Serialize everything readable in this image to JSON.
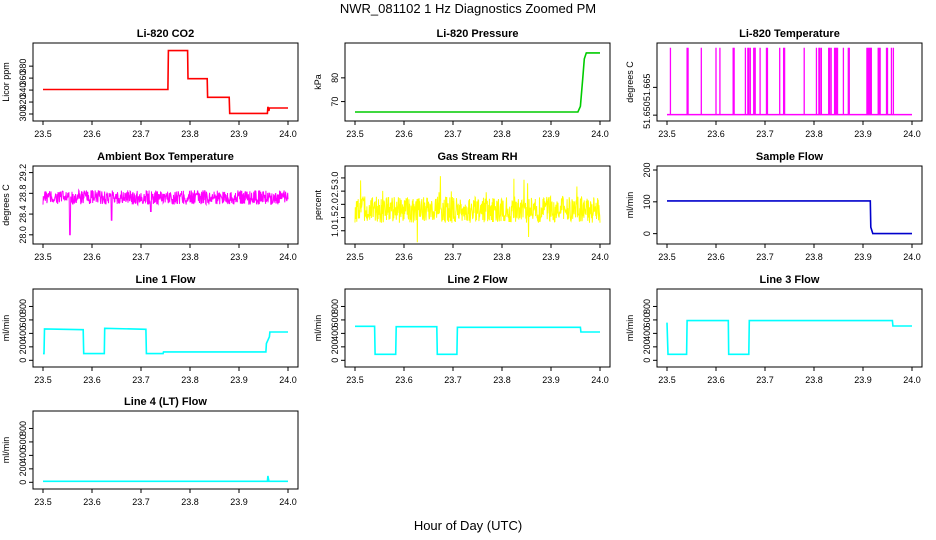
{
  "figure": {
    "title": "NWR_081102  1 Hz Diagnostics Zoomed PM",
    "xlabel": "Hour of Day (UTC)"
  },
  "chart_data": [
    {
      "type": "line",
      "title": "Li-820 CO2",
      "ylabel": "Licor ppm",
      "color": "#ff0000",
      "xlim": [
        23.5,
        24.0
      ],
      "ylim": [
        295,
        412
      ],
      "xticks": [
        23.5,
        23.6,
        23.7,
        23.8,
        23.9,
        24.0
      ],
      "yticks": [
        300,
        320,
        340,
        360,
        380
      ],
      "series": [
        {
          "x": [
            23.5,
            23.755,
            23.756,
            23.795,
            23.796,
            23.835,
            23.836,
            23.88,
            23.881,
            23.958,
            23.959,
            23.961,
            23.962,
            24.0
          ],
          "y": [
            341,
            341,
            406,
            406,
            359,
            359,
            328,
            328,
            301,
            301,
            312,
            305,
            310,
            310
          ]
        }
      ]
    },
    {
      "type": "line",
      "title": "Li-820 Pressure",
      "ylabel": "kPa",
      "color": "#00cc00",
      "xlim": [
        23.5,
        24.0
      ],
      "ylim": [
        63.5,
        93
      ],
      "xticks": [
        23.5,
        23.6,
        23.7,
        23.8,
        23.9,
        24.0
      ],
      "yticks": [
        70,
        80
      ],
      "series": [
        {
          "x": [
            23.5,
            23.955,
            23.96,
            23.965,
            23.968,
            23.972,
            24.0
          ],
          "y": [
            65.6,
            65.6,
            68,
            80,
            88,
            90.5,
            90.5
          ]
        }
      ]
    },
    {
      "type": "line",
      "title": "Li-820 Temperature",
      "ylabel": "degrees C",
      "color": "#ff00ff",
      "xlim": [
        23.5,
        24.0
      ],
      "ylim": [
        51.649,
        51.6868
      ],
      "xticks": [
        23.5,
        23.6,
        23.7,
        23.8,
        23.9,
        24.0
      ],
      "yticks": [
        51.65,
        51.665
      ],
      "baseline": 51.6503,
      "high": 51.6864,
      "spikes": [
        23.507,
        23.541,
        23.543,
        23.57,
        23.6,
        23.608,
        23.635,
        23.637,
        23.66,
        23.665,
        23.667,
        23.67,
        23.677,
        23.679,
        23.68,
        23.69,
        23.703,
        23.705,
        23.73,
        23.738,
        23.74,
        23.78,
        23.805,
        23.81,
        23.812,
        23.815,
        23.83,
        23.832,
        23.835,
        23.842,
        23.844,
        23.846,
        23.848,
        23.86,
        23.87,
        23.872,
        23.908,
        23.91,
        23.912,
        23.914,
        23.916,
        23.917,
        23.931,
        23.933,
        23.935,
        23.948,
        23.95,
        23.958,
        23.962
      ]
    },
    {
      "type": "line",
      "title": "Ambient Box Temperature",
      "ylabel": "degrees C",
      "color": "#ff00ff",
      "xlim": [
        23.5,
        24.0
      ],
      "ylim": [
        27.9,
        29.25
      ],
      "xticks": [
        23.5,
        23.6,
        23.7,
        23.8,
        23.9,
        24.0
      ],
      "yticks": [
        28.0,
        28.4,
        28.8,
        29.2
      ],
      "noise": {
        "center": 28.72,
        "amplitude": 0.14,
        "min_dips": [
          [
            23.555,
            28.0
          ],
          [
            23.64,
            28.28
          ],
          [
            23.72,
            28.45
          ]
        ]
      }
    },
    {
      "type": "line",
      "title": "Gas Stream RH",
      "ylabel": "percent",
      "color": "#ffff00",
      "xlim": [
        23.5,
        24.0
      ],
      "ylim": [
        0.65,
        3.3
      ],
      "xticks": [
        23.5,
        23.6,
        23.7,
        23.8,
        23.9,
        24.0
      ],
      "yticks": [
        1.0,
        1.5,
        2.0,
        2.5,
        3.0
      ],
      "noise": {
        "center": 1.8,
        "amplitude": 0.5
      }
    },
    {
      "type": "line",
      "title": "Sample Flow",
      "ylabel": "ml/min",
      "color": "#0000cc",
      "xlim": [
        23.5,
        24.0
      ],
      "ylim": [
        -20,
        200
      ],
      "xticks": [
        23.5,
        23.6,
        23.7,
        23.8,
        23.9,
        24.0
      ],
      "yticks": [
        0,
        100,
        200
      ],
      "series": [
        {
          "x": [
            23.5,
            23.915,
            23.916,
            23.92,
            24.0
          ],
          "y": [
            103,
            103,
            20,
            0,
            0
          ]
        }
      ]
    },
    {
      "type": "line",
      "title": "Line 1 Flow",
      "ylabel": "ml/min",
      "color": "#00ffff",
      "xlim": [
        23.5,
        24.0
      ],
      "ylim": [
        -40,
        1000
      ],
      "xticks": [
        23.5,
        23.6,
        23.7,
        23.8,
        23.9,
        24.0
      ],
      "yticks": [
        0,
        200,
        400,
        600,
        800
      ],
      "series": [
        {
          "x": [
            23.5,
            23.502,
            23.503,
            23.582,
            23.583,
            23.625,
            23.626,
            23.71,
            23.711,
            23.745,
            23.746,
            23.955,
            23.956,
            23.962,
            23.963,
            24.0
          ],
          "y": [
            100,
            100,
            465,
            455,
            100,
            100,
            475,
            460,
            100,
            100,
            125,
            125,
            250,
            350,
            420,
            420
          ]
        }
      ]
    },
    {
      "type": "line",
      "title": "Line 2 Flow",
      "ylabel": "ml/min",
      "color": "#00ffff",
      "xlim": [
        23.5,
        24.0
      ],
      "ylim": [
        -40,
        1000
      ],
      "xticks": [
        23.5,
        23.6,
        23.7,
        23.8,
        23.9,
        24.0
      ],
      "yticks": [
        0,
        200,
        400,
        600,
        800
      ],
      "series": [
        {
          "x": [
            23.5,
            23.54,
            23.541,
            23.583,
            23.584,
            23.667,
            23.668,
            23.708,
            23.709,
            23.96,
            23.961,
            24.0
          ],
          "y": [
            505,
            505,
            90,
            90,
            500,
            500,
            90,
            90,
            490,
            490,
            420,
            420
          ]
        }
      ]
    },
    {
      "type": "line",
      "title": "Line 3 Flow",
      "ylabel": "ml/min",
      "color": "#00ffff",
      "xlim": [
        23.5,
        24.0
      ],
      "ylim": [
        -40,
        1000
      ],
      "xticks": [
        23.5,
        23.6,
        23.7,
        23.8,
        23.9,
        24.0
      ],
      "yticks": [
        0,
        200,
        400,
        600,
        800
      ],
      "series": [
        {
          "x": [
            23.5,
            23.502,
            23.503,
            23.54,
            23.541,
            23.625,
            23.626,
            23.667,
            23.668,
            23.96,
            23.961,
            24.0
          ],
          "y": [
            560,
            90,
            90,
            90,
            590,
            590,
            90,
            90,
            590,
            590,
            510,
            510
          ]
        }
      ]
    },
    {
      "type": "line",
      "title": "Line 4 (LT) Flow",
      "ylabel": "ml/min",
      "color": "#00ffff",
      "xlim": [
        23.5,
        24.0
      ],
      "ylim": [
        -40,
        1000
      ],
      "xticks": [
        23.5,
        23.6,
        23.7,
        23.8,
        23.9,
        24.0
      ],
      "yticks": [
        0,
        200,
        400,
        600,
        800
      ],
      "series": [
        {
          "x": [
            23.5,
            23.958,
            23.959,
            23.961,
            23.962,
            24.0
          ],
          "y": [
            15,
            15,
            95,
            15,
            15,
            15
          ]
        }
      ]
    }
  ]
}
